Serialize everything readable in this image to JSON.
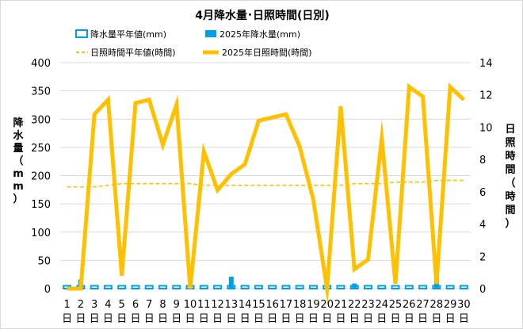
{
  "chart_data": {
    "type": "bar+line",
    "title": "4月降水量･日照時間(日別)",
    "y_left_label_chars": [
      "降",
      "水",
      "量",
      "（",
      "m",
      "m",
      "）"
    ],
    "y_right_label_chars": [
      "日",
      "照",
      "時",
      "間",
      "（",
      "時",
      "間",
      "）"
    ],
    "y_left": {
      "min": 0,
      "max": 400,
      "ticks": [
        "0",
        "50",
        "100",
        "150",
        "200",
        "250",
        "300",
        "350",
        "400"
      ]
    },
    "y_right": {
      "min": 0,
      "max": 14,
      "ticks": [
        "0",
        "2",
        "4",
        "6",
        "8",
        "10",
        "12",
        "14"
      ]
    },
    "day_labels": [
      "1",
      "2",
      "3",
      "4",
      "5",
      "6",
      "7",
      "8",
      "9",
      "10",
      "11",
      "12",
      "13",
      "14",
      "15",
      "16",
      "17",
      "18",
      "19",
      "20",
      "21",
      "22",
      "23",
      "24",
      "25",
      "26",
      "27",
      "28",
      "29",
      "30"
    ],
    "day_suffix": "日",
    "legend": {
      "precip_normal": "降水量平年値(mm)",
      "precip_2025": "2025年降水量(mm)",
      "sun_normal": "日照時間平年値(時間)",
      "sun_2025": "2025年日照時間(時間)"
    },
    "series": [
      {
        "name": "降水量平年値(mm)",
        "axis": "left",
        "kind": "bar-outline",
        "color": "#00a0e9",
        "values": [
          5,
          5,
          5,
          5,
          5,
          5,
          5,
          5,
          5,
          5,
          5,
          5,
          5,
          5,
          5,
          5,
          5,
          5,
          5,
          5,
          5,
          5,
          5,
          5,
          5,
          5,
          5,
          5,
          5,
          5
        ]
      },
      {
        "name": "2025年降水量(mm)",
        "axis": "left",
        "kind": "bar",
        "color": "#00a0e9",
        "values": [
          0,
          16,
          0,
          0,
          0,
          0,
          0,
          0,
          0,
          0,
          0,
          0,
          21,
          0,
          0,
          0,
          0,
          0,
          0,
          0,
          0,
          9,
          0,
          0,
          0,
          0,
          0,
          24,
          0,
          0
        ]
      },
      {
        "name": "日照時間平年値(時間)",
        "axis": "right",
        "kind": "dashed-line",
        "color": "#ffc000",
        "values": [
          6.3,
          6.3,
          6.3,
          6.4,
          6.5,
          6.5,
          6.5,
          6.5,
          6.5,
          6.5,
          6.4,
          6.4,
          6.4,
          6.4,
          6.4,
          6.4,
          6.4,
          6.4,
          6.4,
          6.4,
          6.4,
          6.5,
          6.5,
          6.5,
          6.6,
          6.6,
          6.6,
          6.7,
          6.7,
          6.7
        ]
      },
      {
        "name": "2025年日照時間(時間)",
        "axis": "right",
        "kind": "line",
        "color": "#ffc000",
        "values": [
          0.0,
          0.0,
          10.8,
          11.7,
          0.8,
          11.5,
          11.7,
          8.9,
          11.4,
          0.0,
          8.5,
          6.1,
          7.1,
          7.7,
          10.4,
          10.6,
          10.8,
          8.8,
          5.5,
          0.0,
          11.3,
          1.2,
          1.8,
          9.3,
          0.3,
          12.5,
          11.9,
          0.3,
          12.5,
          11.7
        ]
      }
    ]
  }
}
